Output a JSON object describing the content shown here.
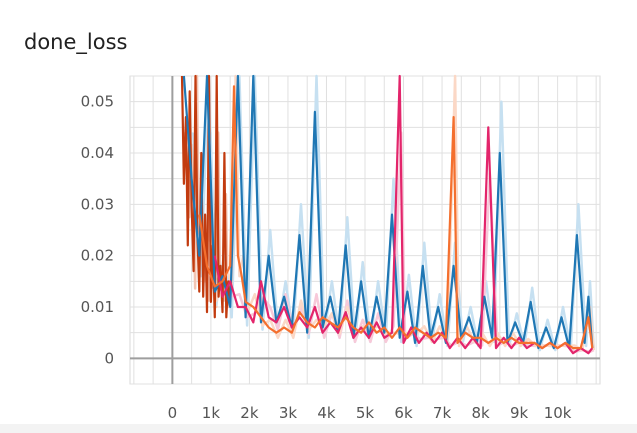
{
  "chart_data": {
    "type": "line",
    "title": "done_loss",
    "xlabel": "",
    "ylabel": "",
    "x_ticks": [
      0,
      1000,
      2000,
      3000,
      4000,
      5000,
      6000,
      7000,
      8000,
      9000,
      10000
    ],
    "x_tick_labels": [
      "0",
      "1k",
      "2k",
      "3k",
      "4k",
      "5k",
      "6k",
      "7k",
      "8k",
      "9k",
      "10k"
    ],
    "y_ticks": [
      0,
      0.01,
      0.02,
      0.03,
      0.04,
      0.05
    ],
    "y_tick_labels": [
      "0",
      "0.01",
      "0.02",
      "0.03",
      "0.04",
      "0.05"
    ],
    "xlim": [
      -1100,
      11100
    ],
    "ylim": [
      -0.005,
      0.055
    ],
    "grid": true,
    "series": [
      {
        "color": "#c23b0f",
        "raw_color": "#f2c5b3",
        "points": [
          [
            250,
            0.055
          ],
          [
            300,
            0.034
          ],
          [
            350,
            0.047
          ],
          [
            400,
            0.022
          ],
          [
            450,
            0.052
          ],
          [
            500,
            0.03
          ],
          [
            550,
            0.017
          ],
          [
            600,
            0.055
          ],
          [
            650,
            0.024
          ],
          [
            700,
            0.013
          ],
          [
            750,
            0.04
          ],
          [
            800,
            0.012
          ],
          [
            850,
            0.028
          ],
          [
            900,
            0.009
          ],
          [
            950,
            0.055
          ],
          [
            1000,
            0.011
          ],
          [
            1050,
            0.022
          ],
          [
            1100,
            0.008
          ],
          [
            1150,
            0.055
          ],
          [
            1200,
            0.012
          ],
          [
            1250,
            0.018
          ],
          [
            1300,
            0.009
          ],
          [
            1350,
            0.04
          ],
          [
            1400,
            0.008
          ],
          [
            1450,
            0.015
          ],
          [
            1500,
            0.011
          ]
        ]
      },
      {
        "color": "#1f77b4",
        "raw_color": "#c6e0f1",
        "points": [
          [
            300,
            0.055
          ],
          [
            500,
            0.035
          ],
          [
            700,
            0.02
          ],
          [
            900,
            0.055
          ],
          [
            1100,
            0.013
          ],
          [
            1300,
            0.016
          ],
          [
            1500,
            0.01
          ],
          [
            1700,
            0.055
          ],
          [
            1900,
            0.008
          ],
          [
            2100,
            0.055
          ],
          [
            2300,
            0.007
          ],
          [
            2500,
            0.02
          ],
          [
            2700,
            0.007
          ],
          [
            2900,
            0.012
          ],
          [
            3100,
            0.006
          ],
          [
            3300,
            0.024
          ],
          [
            3500,
            0.005
          ],
          [
            3700,
            0.048
          ],
          [
            3900,
            0.006
          ],
          [
            4100,
            0.012
          ],
          [
            4300,
            0.005
          ],
          [
            4500,
            0.022
          ],
          [
            4700,
            0.004
          ],
          [
            4900,
            0.015
          ],
          [
            5100,
            0.004
          ],
          [
            5300,
            0.012
          ],
          [
            5500,
            0.005
          ],
          [
            5700,
            0.028
          ],
          [
            5900,
            0.004
          ],
          [
            6100,
            0.013
          ],
          [
            6300,
            0.003
          ],
          [
            6500,
            0.018
          ],
          [
            6700,
            0.004
          ],
          [
            6900,
            0.01
          ],
          [
            7100,
            0.003
          ],
          [
            7300,
            0.018
          ],
          [
            7500,
            0.004
          ],
          [
            7700,
            0.008
          ],
          [
            7900,
            0.003
          ],
          [
            8100,
            0.012
          ],
          [
            8300,
            0.004
          ],
          [
            8500,
            0.04
          ],
          [
            8700,
            0.003
          ],
          [
            8900,
            0.007
          ],
          [
            9100,
            0.003
          ],
          [
            9300,
            0.011
          ],
          [
            9500,
            0.002
          ],
          [
            9700,
            0.006
          ],
          [
            9900,
            0.002
          ],
          [
            10100,
            0.008
          ],
          [
            10300,
            0.002
          ],
          [
            10500,
            0.024
          ],
          [
            10700,
            0.003
          ],
          [
            10800,
            0.012
          ],
          [
            10900,
            0.002
          ]
        ]
      },
      {
        "color": "#e3256b",
        "raw_color": "#f7c9d9",
        "points": [
          [
            1100,
            0.02
          ],
          [
            1300,
            0.012
          ],
          [
            1500,
            0.015
          ],
          [
            1700,
            0.01
          ],
          [
            1900,
            0.01
          ],
          [
            2100,
            0.007
          ],
          [
            2300,
            0.015
          ],
          [
            2500,
            0.008
          ],
          [
            2700,
            0.007
          ],
          [
            2900,
            0.01
          ],
          [
            3100,
            0.006
          ],
          [
            3300,
            0.008
          ],
          [
            3500,
            0.006
          ],
          [
            3700,
            0.01
          ],
          [
            3900,
            0.005
          ],
          [
            4100,
            0.007
          ],
          [
            4300,
            0.005
          ],
          [
            4500,
            0.009
          ],
          [
            4700,
            0.004
          ],
          [
            4900,
            0.006
          ],
          [
            5100,
            0.004
          ],
          [
            5300,
            0.007
          ],
          [
            5500,
            0.004
          ],
          [
            5700,
            0.005
          ],
          [
            5900,
            0.055
          ],
          [
            6000,
            0.003
          ],
          [
            6200,
            0.006
          ],
          [
            6400,
            0.003
          ],
          [
            6600,
            0.005
          ],
          [
            6800,
            0.003
          ],
          [
            7000,
            0.005
          ],
          [
            7200,
            0.002
          ],
          [
            7400,
            0.004
          ],
          [
            7600,
            0.002
          ],
          [
            7800,
            0.004
          ],
          [
            8000,
            0.002
          ],
          [
            8200,
            0.045
          ],
          [
            8400,
            0.002
          ],
          [
            8600,
            0.004
          ],
          [
            8800,
            0.002
          ],
          [
            9000,
            0.004
          ],
          [
            9200,
            0.002
          ],
          [
            9400,
            0.003
          ],
          [
            9600,
            0.002
          ],
          [
            9800,
            0.003
          ],
          [
            10000,
            0.002
          ],
          [
            10200,
            0.003
          ],
          [
            10400,
            0.001
          ],
          [
            10600,
            0.002
          ],
          [
            10800,
            0.001
          ],
          [
            10900,
            0.002
          ]
        ]
      },
      {
        "color": "#f46f2e",
        "raw_color": "#fbd8c6",
        "points": [
          [
            700,
            0.028
          ],
          [
            900,
            0.018
          ],
          [
            1100,
            0.014
          ],
          [
            1300,
            0.015
          ],
          [
            1500,
            0.018
          ],
          [
            1600,
            0.053
          ],
          [
            1700,
            0.02
          ],
          [
            1800,
            0.016
          ],
          [
            1900,
            0.011
          ],
          [
            2100,
            0.01
          ],
          [
            2300,
            0.008
          ],
          [
            2500,
            0.006
          ],
          [
            2700,
            0.005
          ],
          [
            2900,
            0.006
          ],
          [
            3100,
            0.005
          ],
          [
            3300,
            0.009
          ],
          [
            3500,
            0.007
          ],
          [
            3700,
            0.006
          ],
          [
            3900,
            0.008
          ],
          [
            4100,
            0.007
          ],
          [
            4300,
            0.006
          ],
          [
            4500,
            0.008
          ],
          [
            4700,
            0.006
          ],
          [
            4900,
            0.005
          ],
          [
            5100,
            0.007
          ],
          [
            5300,
            0.005
          ],
          [
            5500,
            0.006
          ],
          [
            5700,
            0.004
          ],
          [
            5900,
            0.006
          ],
          [
            6100,
            0.004
          ],
          [
            6300,
            0.006
          ],
          [
            6500,
            0.005
          ],
          [
            6700,
            0.004
          ],
          [
            6900,
            0.005
          ],
          [
            7100,
            0.004
          ],
          [
            7300,
            0.047
          ],
          [
            7400,
            0.003
          ],
          [
            7600,
            0.005
          ],
          [
            7800,
            0.004
          ],
          [
            8000,
            0.004
          ],
          [
            8200,
            0.003
          ],
          [
            8400,
            0.004
          ],
          [
            8600,
            0.003
          ],
          [
            8800,
            0.004
          ],
          [
            9000,
            0.003
          ],
          [
            9200,
            0.003
          ],
          [
            9400,
            0.003
          ],
          [
            9600,
            0.002
          ],
          [
            9800,
            0.003
          ],
          [
            10000,
            0.002
          ],
          [
            10200,
            0.003
          ],
          [
            10400,
            0.002
          ],
          [
            10600,
            0.002
          ],
          [
            10800,
            0.008
          ],
          [
            10900,
            0.002
          ]
        ]
      }
    ]
  }
}
